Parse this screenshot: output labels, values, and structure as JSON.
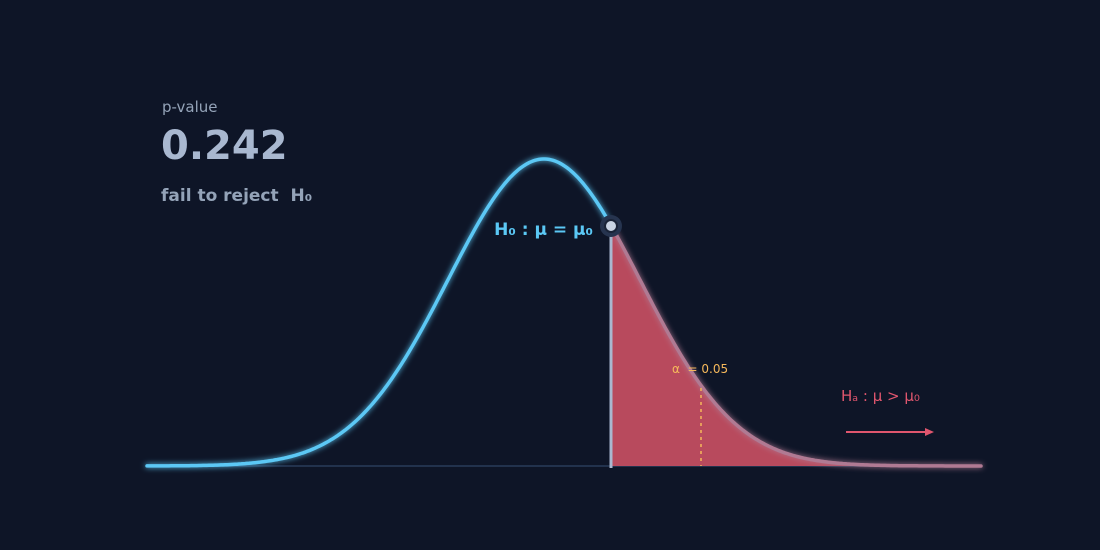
{
  "stat": {
    "label": "p-value",
    "value": "0.242",
    "decision": "fail to reject  H₀"
  },
  "annotations": {
    "null_hypothesis": "H₀ : μ = μ₀",
    "alpha": "α  = 0.05",
    "alternative": "Hₐ : μ > μ₀"
  }
}
